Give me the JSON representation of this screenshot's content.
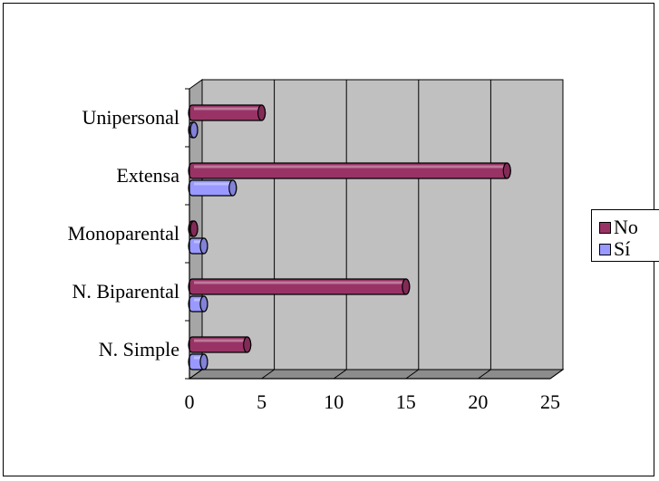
{
  "chart_data": {
    "type": "bar",
    "orientation": "horizontal",
    "categories": [
      "N. Simple",
      "N. Biparental",
      "Monoparental",
      "Extensa",
      "Unipersonal"
    ],
    "series": [
      {
        "name": "Sí",
        "values": [
          1,
          1,
          1,
          3,
          0
        ],
        "color": "#9999ff"
      },
      {
        "name": "No",
        "values": [
          4,
          15,
          0,
          22,
          5
        ],
        "color": "#993366"
      }
    ],
    "xlim": [
      0,
      25
    ],
    "xticks": [
      "0",
      "5",
      "10",
      "15",
      "20",
      "25"
    ],
    "grid": true,
    "legend_position": "right",
    "plot_background": "#c0c0c0"
  }
}
